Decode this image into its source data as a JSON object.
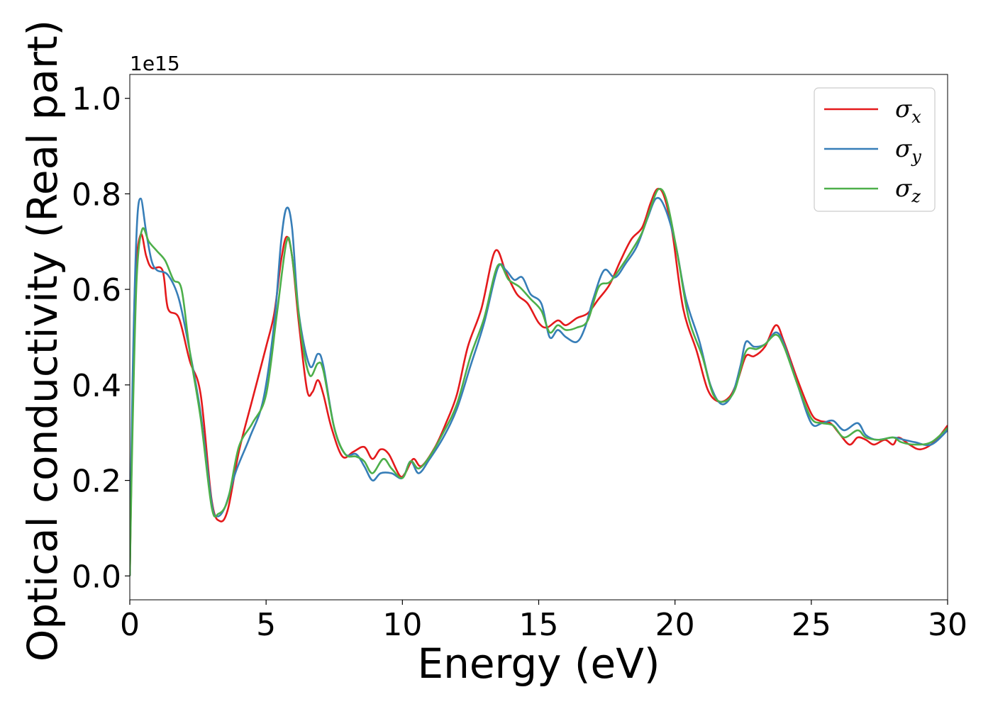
{
  "chart_data": {
    "type": "line",
    "xlabel": "Energy (eV)",
    "ylabel": "Optical conductivity (Real part)",
    "y_offset_label": "1e15",
    "xlim": [
      0,
      30
    ],
    "ylim": [
      -0.05,
      1.05
    ],
    "x_ticks": [
      0,
      5,
      10,
      15,
      20,
      25,
      30
    ],
    "x_tick_labels": [
      "0",
      "5",
      "10",
      "15",
      "20",
      "25",
      "30"
    ],
    "y_ticks": [
      0.0,
      0.2,
      0.4,
      0.6,
      0.8,
      1.0
    ],
    "y_tick_labels": [
      "0.0",
      "0.2",
      "0.4",
      "0.6",
      "0.8",
      "1.0"
    ],
    "grid": false,
    "legend_position": "top-right",
    "series": [
      {
        "name": "σx",
        "label_base": "σ",
        "label_sub": "x",
        "color": "#e41a1c",
        "points": [
          [
            0,
            0.0
          ],
          [
            0.1,
            0.35
          ],
          [
            0.2,
            0.62
          ],
          [
            0.4,
            0.715
          ],
          [
            0.6,
            0.67
          ],
          [
            0.8,
            0.645
          ],
          [
            1.2,
            0.64
          ],
          [
            1.4,
            0.56
          ],
          [
            1.8,
            0.54
          ],
          [
            2.2,
            0.45
          ],
          [
            2.6,
            0.38
          ],
          [
            3.0,
            0.16
          ],
          [
            3.3,
            0.115
          ],
          [
            3.6,
            0.14
          ],
          [
            4.0,
            0.26
          ],
          [
            4.5,
            0.37
          ],
          [
            5.0,
            0.48
          ],
          [
            5.3,
            0.55
          ],
          [
            5.55,
            0.66
          ],
          [
            5.75,
            0.71
          ],
          [
            5.95,
            0.67
          ],
          [
            6.2,
            0.53
          ],
          [
            6.5,
            0.39
          ],
          [
            6.7,
            0.385
          ],
          [
            6.9,
            0.41
          ],
          [
            7.1,
            0.38
          ],
          [
            7.4,
            0.31
          ],
          [
            7.8,
            0.25
          ],
          [
            8.2,
            0.26
          ],
          [
            8.6,
            0.27
          ],
          [
            8.9,
            0.245
          ],
          [
            9.2,
            0.265
          ],
          [
            9.5,
            0.255
          ],
          [
            9.9,
            0.21
          ],
          [
            10.1,
            0.215
          ],
          [
            10.4,
            0.245
          ],
          [
            10.7,
            0.23
          ],
          [
            11.2,
            0.27
          ],
          [
            11.6,
            0.32
          ],
          [
            12.0,
            0.38
          ],
          [
            12.4,
            0.48
          ],
          [
            12.9,
            0.56
          ],
          [
            13.4,
            0.68
          ],
          [
            13.8,
            0.635
          ],
          [
            14.2,
            0.59
          ],
          [
            14.6,
            0.57
          ],
          [
            15.0,
            0.53
          ],
          [
            15.3,
            0.52
          ],
          [
            15.7,
            0.535
          ],
          [
            16.0,
            0.525
          ],
          [
            16.4,
            0.54
          ],
          [
            16.8,
            0.55
          ],
          [
            17.2,
            0.58
          ],
          [
            17.6,
            0.61
          ],
          [
            18.0,
            0.66
          ],
          [
            18.4,
            0.705
          ],
          [
            18.8,
            0.73
          ],
          [
            19.1,
            0.78
          ],
          [
            19.35,
            0.81
          ],
          [
            19.6,
            0.795
          ],
          [
            19.9,
            0.72
          ],
          [
            20.3,
            0.56
          ],
          [
            20.8,
            0.47
          ],
          [
            21.2,
            0.39
          ],
          [
            21.6,
            0.365
          ],
          [
            22.0,
            0.375
          ],
          [
            22.3,
            0.41
          ],
          [
            22.6,
            0.46
          ],
          [
            22.9,
            0.46
          ],
          [
            23.3,
            0.48
          ],
          [
            23.7,
            0.525
          ],
          [
            24.0,
            0.49
          ],
          [
            24.5,
            0.41
          ],
          [
            25.0,
            0.34
          ],
          [
            25.3,
            0.325
          ],
          [
            25.7,
            0.32
          ],
          [
            26.0,
            0.3
          ],
          [
            26.4,
            0.275
          ],
          [
            26.7,
            0.29
          ],
          [
            27.0,
            0.285
          ],
          [
            27.3,
            0.275
          ],
          [
            27.7,
            0.285
          ],
          [
            28.0,
            0.275
          ],
          [
            28.2,
            0.29
          ],
          [
            28.6,
            0.275
          ],
          [
            29.0,
            0.265
          ],
          [
            29.5,
            0.28
          ],
          [
            30.0,
            0.315
          ]
        ]
      },
      {
        "name": "σy",
        "label_base": "σ",
        "label_sub": "y",
        "color": "#377eb8",
        "points": [
          [
            0,
            0.0
          ],
          [
            0.1,
            0.4
          ],
          [
            0.25,
            0.72
          ],
          [
            0.4,
            0.79
          ],
          [
            0.6,
            0.72
          ],
          [
            0.8,
            0.66
          ],
          [
            1.0,
            0.64
          ],
          [
            1.4,
            0.63
          ],
          [
            1.8,
            0.58
          ],
          [
            2.2,
            0.47
          ],
          [
            2.6,
            0.34
          ],
          [
            3.0,
            0.155
          ],
          [
            3.2,
            0.125
          ],
          [
            3.5,
            0.145
          ],
          [
            3.9,
            0.22
          ],
          [
            4.4,
            0.29
          ],
          [
            4.9,
            0.37
          ],
          [
            5.3,
            0.53
          ],
          [
            5.55,
            0.7
          ],
          [
            5.75,
            0.77
          ],
          [
            5.95,
            0.73
          ],
          [
            6.2,
            0.55
          ],
          [
            6.6,
            0.44
          ],
          [
            6.9,
            0.465
          ],
          [
            7.1,
            0.44
          ],
          [
            7.5,
            0.31
          ],
          [
            7.9,
            0.255
          ],
          [
            8.3,
            0.255
          ],
          [
            8.6,
            0.23
          ],
          [
            8.9,
            0.2
          ],
          [
            9.2,
            0.215
          ],
          [
            9.6,
            0.215
          ],
          [
            10.0,
            0.205
          ],
          [
            10.3,
            0.24
          ],
          [
            10.6,
            0.215
          ],
          [
            11.0,
            0.245
          ],
          [
            11.5,
            0.29
          ],
          [
            12.0,
            0.35
          ],
          [
            12.5,
            0.44
          ],
          [
            13.0,
            0.53
          ],
          [
            13.5,
            0.645
          ],
          [
            13.8,
            0.64
          ],
          [
            14.1,
            0.62
          ],
          [
            14.4,
            0.625
          ],
          [
            14.7,
            0.59
          ],
          [
            15.1,
            0.57
          ],
          [
            15.4,
            0.5
          ],
          [
            15.7,
            0.515
          ],
          [
            16.0,
            0.5
          ],
          [
            16.4,
            0.49
          ],
          [
            16.7,
            0.52
          ],
          [
            17.0,
            0.58
          ],
          [
            17.4,
            0.64
          ],
          [
            17.8,
            0.625
          ],
          [
            18.2,
            0.655
          ],
          [
            18.6,
            0.69
          ],
          [
            19.0,
            0.75
          ],
          [
            19.3,
            0.79
          ],
          [
            19.6,
            0.775
          ],
          [
            20.0,
            0.7
          ],
          [
            20.4,
            0.58
          ],
          [
            20.9,
            0.49
          ],
          [
            21.3,
            0.4
          ],
          [
            21.7,
            0.36
          ],
          [
            22.1,
            0.38
          ],
          [
            22.4,
            0.44
          ],
          [
            22.6,
            0.49
          ],
          [
            22.9,
            0.48
          ],
          [
            23.3,
            0.485
          ],
          [
            23.7,
            0.51
          ],
          [
            24.0,
            0.485
          ],
          [
            24.5,
            0.4
          ],
          [
            25.0,
            0.32
          ],
          [
            25.4,
            0.32
          ],
          [
            25.8,
            0.325
          ],
          [
            26.2,
            0.305
          ],
          [
            26.7,
            0.32
          ],
          [
            27.0,
            0.295
          ],
          [
            27.4,
            0.285
          ],
          [
            28.0,
            0.29
          ],
          [
            28.4,
            0.285
          ],
          [
            28.8,
            0.28
          ],
          [
            29.4,
            0.275
          ],
          [
            30.0,
            0.305
          ]
        ]
      },
      {
        "name": "σz",
        "label_base": "σ",
        "label_sub": "z",
        "color": "#4daf4a",
        "points": [
          [
            0,
            0.0
          ],
          [
            0.1,
            0.3
          ],
          [
            0.25,
            0.62
          ],
          [
            0.45,
            0.725
          ],
          [
            0.7,
            0.7
          ],
          [
            1.0,
            0.68
          ],
          [
            1.3,
            0.66
          ],
          [
            1.6,
            0.62
          ],
          [
            1.9,
            0.6
          ],
          [
            2.2,
            0.47
          ],
          [
            2.6,
            0.33
          ],
          [
            3.0,
            0.145
          ],
          [
            3.25,
            0.13
          ],
          [
            3.6,
            0.16
          ],
          [
            4.0,
            0.27
          ],
          [
            4.5,
            0.32
          ],
          [
            5.0,
            0.38
          ],
          [
            5.4,
            0.55
          ],
          [
            5.75,
            0.7
          ],
          [
            5.95,
            0.67
          ],
          [
            6.3,
            0.5
          ],
          [
            6.6,
            0.42
          ],
          [
            6.9,
            0.445
          ],
          [
            7.1,
            0.43
          ],
          [
            7.5,
            0.31
          ],
          [
            7.9,
            0.255
          ],
          [
            8.3,
            0.25
          ],
          [
            8.6,
            0.24
          ],
          [
            8.9,
            0.215
          ],
          [
            9.3,
            0.245
          ],
          [
            9.6,
            0.225
          ],
          [
            10.0,
            0.205
          ],
          [
            10.3,
            0.24
          ],
          [
            10.6,
            0.225
          ],
          [
            11.0,
            0.25
          ],
          [
            11.5,
            0.3
          ],
          [
            12.0,
            0.36
          ],
          [
            12.5,
            0.46
          ],
          [
            13.0,
            0.54
          ],
          [
            13.5,
            0.65
          ],
          [
            13.9,
            0.62
          ],
          [
            14.3,
            0.605
          ],
          [
            14.7,
            0.58
          ],
          [
            15.1,
            0.555
          ],
          [
            15.4,
            0.51
          ],
          [
            15.7,
            0.525
          ],
          [
            16.0,
            0.515
          ],
          [
            16.4,
            0.52
          ],
          [
            16.8,
            0.535
          ],
          [
            17.2,
            0.605
          ],
          [
            17.6,
            0.615
          ],
          [
            18.0,
            0.645
          ],
          [
            18.4,
            0.68
          ],
          [
            18.8,
            0.72
          ],
          [
            19.1,
            0.77
          ],
          [
            19.4,
            0.81
          ],
          [
            19.7,
            0.785
          ],
          [
            20.1,
            0.67
          ],
          [
            20.5,
            0.54
          ],
          [
            21.0,
            0.46
          ],
          [
            21.4,
            0.38
          ],
          [
            21.8,
            0.365
          ],
          [
            22.2,
            0.39
          ],
          [
            22.6,
            0.47
          ],
          [
            23.0,
            0.475
          ],
          [
            23.3,
            0.485
          ],
          [
            23.7,
            0.505
          ],
          [
            24.0,
            0.48
          ],
          [
            24.5,
            0.4
          ],
          [
            25.0,
            0.33
          ],
          [
            25.4,
            0.32
          ],
          [
            25.8,
            0.315
          ],
          [
            26.2,
            0.29
          ],
          [
            26.7,
            0.305
          ],
          [
            27.0,
            0.29
          ],
          [
            27.5,
            0.285
          ],
          [
            28.0,
            0.29
          ],
          [
            28.3,
            0.28
          ],
          [
            28.8,
            0.275
          ],
          [
            29.4,
            0.28
          ],
          [
            30.0,
            0.31
          ]
        ]
      }
    ]
  }
}
